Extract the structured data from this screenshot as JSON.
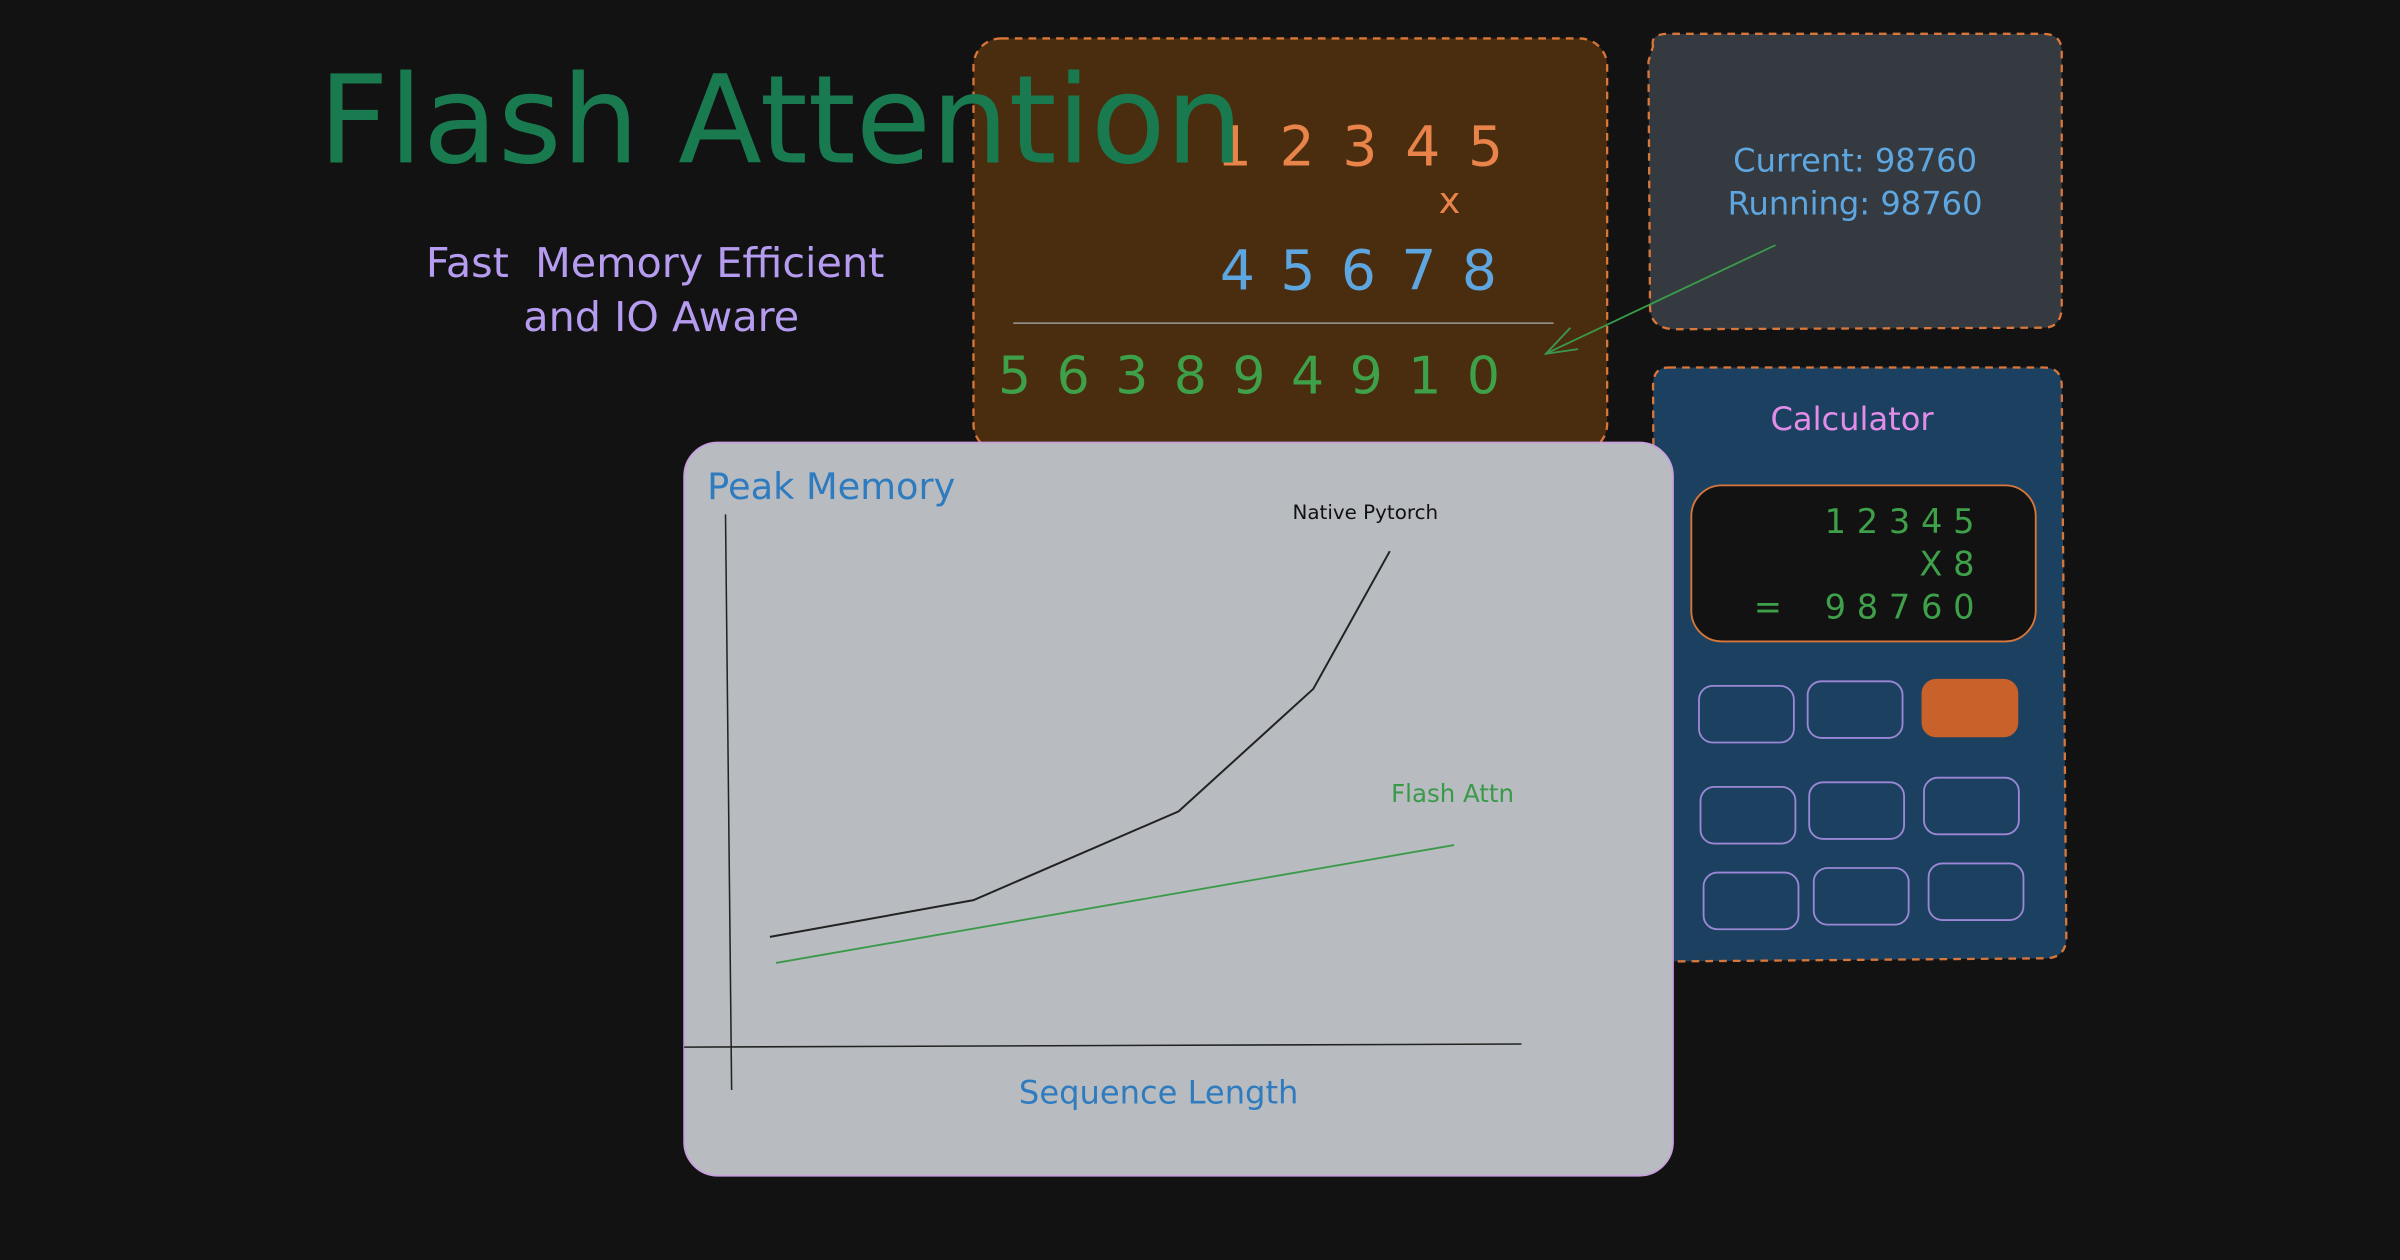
{
  "header": {
    "title": "Flash Attention",
    "subtitle": [
      "Fast  Memory Efficient",
      "and IO Aware"
    ]
  },
  "multiplication": {
    "multiplicand": "1 2 3 4 5",
    "operator": "x",
    "multiplier": "4 5 6 7 8",
    "product": "5 6 3 8 9 4 9 1 0"
  },
  "status": {
    "current": "Current: 98760",
    "running": "Running: 98760"
  },
  "calculator": {
    "title": "Calculator",
    "display": {
      "first": "1 2 3 4 5",
      "second": "X 8",
      "equals": "=",
      "result": "9 8 7 6 0"
    }
  },
  "chart": {
    "title": "Peak Memory",
    "x_label": "Sequence Length",
    "series": [
      "Native Pytorch",
      "Flash Attn"
    ]
  }
}
